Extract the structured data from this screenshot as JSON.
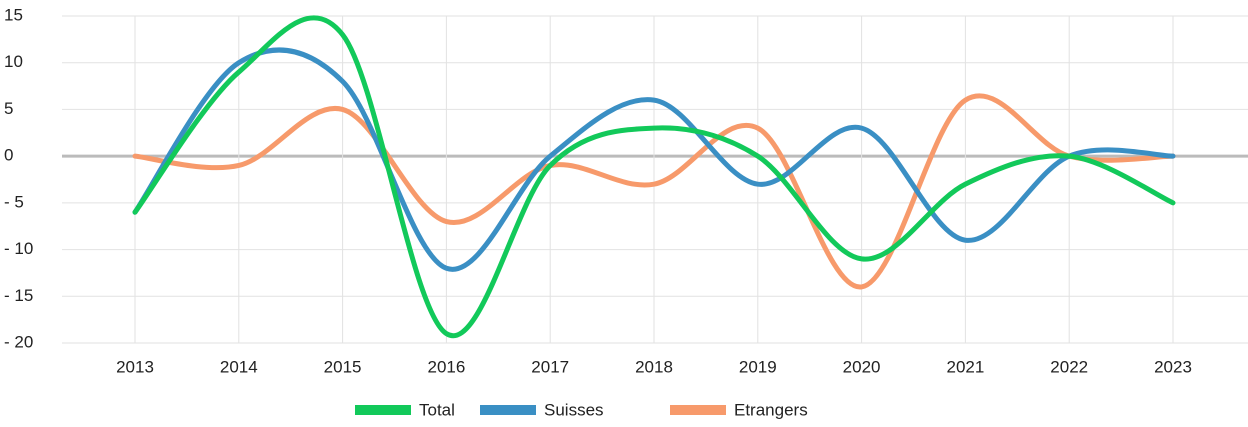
{
  "chart_data": {
    "type": "line",
    "categories": [
      "2013",
      "2014",
      "2015",
      "2016",
      "2017",
      "2018",
      "2019",
      "2020",
      "2021",
      "2022",
      "2023"
    ],
    "series": [
      {
        "name": "Total",
        "color": "#12c95a",
        "values": [
          -6,
          9,
          13,
          -19,
          -1,
          3,
          0,
          -11,
          -3,
          0,
          -5
        ]
      },
      {
        "name": "Suisses",
        "color": "#3a8fc4",
        "values": [
          -6,
          10,
          8,
          -12,
          0,
          6,
          -3,
          3,
          -9,
          0,
          0
        ]
      },
      {
        "name": "Etrangers",
        "color": "#f79a6b",
        "values": [
          0,
          -1,
          5,
          -7,
          -1,
          -3,
          3,
          -14,
          6,
          0,
          0
        ]
      }
    ],
    "ylim": [
      -20,
      15
    ],
    "yticks": [
      {
        "value": -20,
        "label": "- 20"
      },
      {
        "value": -15,
        "label": "- 15"
      },
      {
        "value": -10,
        "label": "- 10"
      },
      {
        "value": -5,
        "label": "- 5"
      },
      0,
      5,
      10,
      15
    ],
    "grid": true,
    "legend": "bottom"
  }
}
